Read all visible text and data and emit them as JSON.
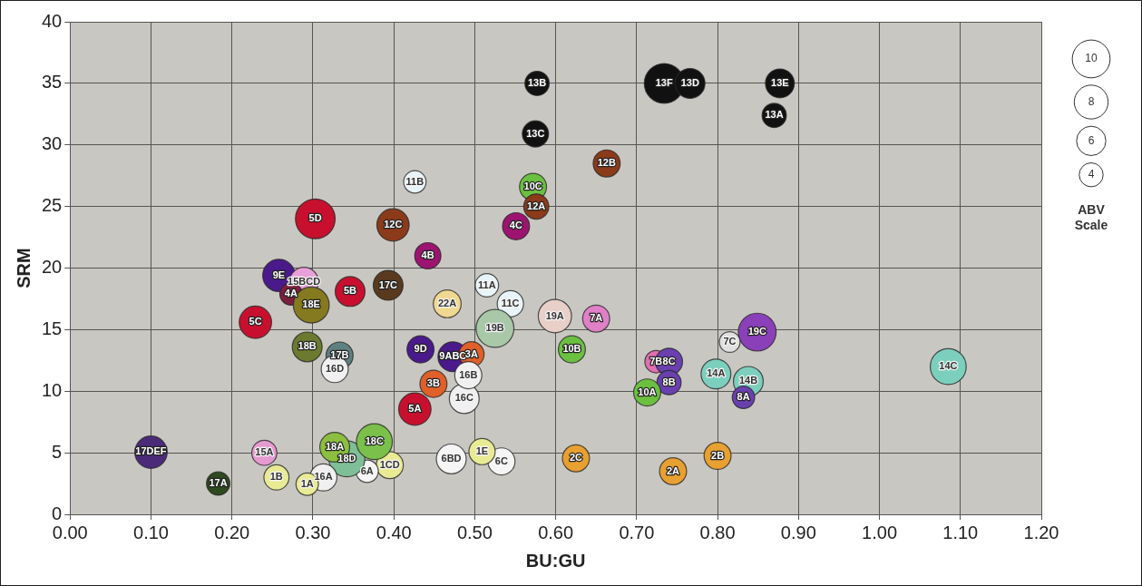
{
  "chart_data": {
    "type": "bubble",
    "xlabel": "BU:GU",
    "ylabel": "SRM",
    "legend_title": "ABV Scale",
    "size_legend": [
      10,
      8,
      6,
      4
    ],
    "xlim": [
      0,
      1.2
    ],
    "ylim": [
      0,
      40
    ],
    "xticks": [
      {
        "value": 0,
        "label": "0.00"
      },
      {
        "value": 0.1,
        "label": "0.10"
      },
      {
        "value": 0.2,
        "label": "0.20"
      },
      {
        "value": 0.3,
        "label": "0.30"
      },
      {
        "value": 0.4,
        "label": "0.40"
      },
      {
        "value": 0.5,
        "label": "0.50"
      },
      {
        "value": 0.6,
        "label": "0.60"
      },
      {
        "value": 0.7,
        "label": "0.70"
      },
      {
        "value": 0.8,
        "label": "0.80"
      },
      {
        "value": 0.9,
        "label": "0.90"
      },
      {
        "value": 1,
        "label": "1.00"
      },
      {
        "value": 1.1,
        "label": "1.10"
      },
      {
        "value": 1.2,
        "label": "1.20"
      }
    ],
    "yticks": [
      0,
      5,
      10,
      15,
      20,
      25,
      30,
      35,
      40
    ],
    "grid": true,
    "x": [
      0.577,
      0.575,
      0.663,
      0.426,
      0.572,
      0.576,
      0.551,
      0.399,
      0.442,
      0.393,
      0.515,
      0.466,
      0.544,
      0.525,
      0.599,
      0.65,
      0.62,
      0.433,
      0.473,
      0.496,
      0.734,
      0.766,
      0.877,
      0.87,
      0.849,
      0.815,
      0.724,
      0.74,
      0.74,
      0.713,
      0.798,
      0.838,
      0.832,
      1.085,
      0.8,
      0.745,
      0.625,
      0.533,
      0.509,
      0.471,
      0.487,
      0.492,
      0.449,
      0.426,
      0.395,
      0.258,
      0.289,
      0.273,
      0.298,
      0.346,
      0.229,
      0.293,
      0.333,
      0.327,
      0.367,
      0.342,
      0.376,
      0.327,
      0.313,
      0.293,
      0.255,
      0.24,
      0.183,
      0.1,
      0.303
    ],
    "values": [
      35,
      30.9,
      28.5,
      27,
      26.6,
      25,
      23.4,
      23.5,
      21,
      18.6,
      18.6,
      17.1,
      17.1,
      15.1,
      16.1,
      15.9,
      13.4,
      13.4,
      12.8,
      13,
      35,
      35,
      35,
      32.4,
      14.8,
      14,
      12.4,
      12.4,
      10.7,
      9.9,
      11.4,
      10.8,
      9.5,
      12,
      4.75,
      3.5,
      4.55,
      4.3,
      5.1,
      4.5,
      9.4,
      11.3,
      10.6,
      8.55,
      4,
      19.4,
      18.9,
      17.9,
      17,
      18.1,
      15.6,
      13.6,
      12.9,
      11.8,
      3.5,
      4.5,
      5.9,
      5.45,
      3,
      2.45,
      3,
      5,
      2.5,
      5.05,
      24
    ],
    "sizes": [
      4.1,
      4.8,
      5.1,
      3.5,
      5.1,
      4.4,
      5.1,
      7.3,
      4.8,
      6.2,
      3.8,
      5.4,
      4.8,
      10,
      7.7,
      5.1,
      5.1,
      5.1,
      6.2,
      4.4,
      11,
      6.2,
      5.8,
      4.1,
      10,
      3,
      3.5,
      5.1,
      4.1,
      5.1,
      6.2,
      6.2,
      3.5,
      9,
      5.1,
      5.1,
      5.1,
      5.1,
      4.8,
      6.2,
      6.2,
      5.1,
      5.1,
      7.3,
      5.1,
      7.3,
      5.8,
      3.5,
      9,
      6.2,
      7.3,
      6.2,
      5.1,
      5.1,
      3.5,
      9,
      9,
      6.2,
      5.1,
      3.5,
      4.4,
      4.4,
      3.8,
      7.3,
      11
    ],
    "colors": [
      "#111111",
      "#111111",
      "#8b3a1a",
      "#e8f4f8",
      "#6cc040",
      "#8b3a1a",
      "#9c1470",
      "#8b3a1a",
      "#9c1470",
      "#5a3a1e",
      "#e8f4f8",
      "#f0d890",
      "#e8f4f8",
      "#a8c8a8",
      "#e8cfc8",
      "#e080c8",
      "#6cc040",
      "#4a1a8c",
      "#4a1a8c",
      "#e0602a",
      "#111111",
      "#111111",
      "#111111",
      "#111111",
      "#8a40b8",
      "#e0e0e0",
      "#e070b0",
      "#6a40b0",
      "#6a40b0",
      "#6cc040",
      "#7ccfbc",
      "#7ccfbc",
      "#6a40b0",
      "#7ccfbc",
      "#e8a030",
      "#e8a030",
      "#e8a030",
      "#f5f5f5",
      "#e9eb94",
      "#f5f5f5",
      "#f0f0f0",
      "#f0f0f0",
      "#e0602a",
      "#c8102e",
      "#e9eb94",
      "#4a1a8c",
      "#e8a0d8",
      "#7a1f3d",
      "#857a1f",
      "#c8102e",
      "#c8102e",
      "#6b7a2e",
      "#5f8080",
      "#f0f0f0",
      "#f5f5f5",
      "#7fbf98",
      "#7ac04a",
      "#8cbf3f",
      "#f0f0f0",
      "#e9eb94",
      "#e9eb94",
      "#e59ad0",
      "#2e4a1e",
      "#4b2a7a",
      "#c8102e"
    ],
    "annotations": [
      {
        "text": "13B",
        "x": 0.577,
        "y": 35
      },
      {
        "text": "13C",
        "x": 0.575,
        "y": 30.9
      },
      {
        "text": "12B",
        "x": 0.663,
        "y": 28.5
      },
      {
        "text": "11B",
        "x": 0.426,
        "y": 27
      },
      {
        "text": "10C",
        "x": 0.572,
        "y": 26.6
      },
      {
        "text": "12A",
        "x": 0.576,
        "y": 25
      },
      {
        "text": "4C",
        "x": 0.551,
        "y": 23.4
      },
      {
        "text": "12C",
        "x": 0.399,
        "y": 23.5
      },
      {
        "text": "4B",
        "x": 0.442,
        "y": 21
      },
      {
        "text": "17C",
        "x": 0.393,
        "y": 18.6
      },
      {
        "text": "11A",
        "x": 0.515,
        "y": 18.6
      },
      {
        "text": "22A",
        "x": 0.466,
        "y": 17.1
      },
      {
        "text": "11C",
        "x": 0.544,
        "y": 17.1
      },
      {
        "text": "19B",
        "x": 0.525,
        "y": 15.1
      },
      {
        "text": "19A",
        "x": 0.599,
        "y": 16.1
      },
      {
        "text": "7A",
        "x": 0.65,
        "y": 15.9
      },
      {
        "text": "10B",
        "x": 0.62,
        "y": 13.4
      },
      {
        "text": "9D",
        "x": 0.433,
        "y": 13.4
      },
      {
        "text": "9ABC",
        "x": 0.473,
        "y": 12.8
      },
      {
        "text": "3A",
        "x": 0.496,
        "y": 13
      },
      {
        "text": "13F",
        "x": 0.734,
        "y": 35
      },
      {
        "text": "13D",
        "x": 0.766,
        "y": 35
      },
      {
        "text": "13E",
        "x": 0.877,
        "y": 35
      },
      {
        "text": "13A",
        "x": 0.87,
        "y": 32.4
      },
      {
        "text": "19C",
        "x": 0.849,
        "y": 14.8
      },
      {
        "text": "7C",
        "x": 0.815,
        "y": 14
      },
      {
        "text": "7B",
        "x": 0.724,
        "y": 12.4
      },
      {
        "text": "8C",
        "x": 0.74,
        "y": 12.4
      },
      {
        "text": "8B",
        "x": 0.74,
        "y": 10.7
      },
      {
        "text": "10A",
        "x": 0.713,
        "y": 9.9
      },
      {
        "text": "14A",
        "x": 0.798,
        "y": 11.4
      },
      {
        "text": "14B",
        "x": 0.838,
        "y": 10.8
      },
      {
        "text": "8A",
        "x": 0.832,
        "y": 9.5
      },
      {
        "text": "14C",
        "x": 1.085,
        "y": 12
      },
      {
        "text": "2B",
        "x": 0.8,
        "y": 4.75
      },
      {
        "text": "2A",
        "x": 0.745,
        "y": 3.5
      },
      {
        "text": "2C",
        "x": 0.625,
        "y": 4.55
      },
      {
        "text": "6C",
        "x": 0.533,
        "y": 4.3
      },
      {
        "text": "1E",
        "x": 0.509,
        "y": 5.1
      },
      {
        "text": "6BD",
        "x": 0.471,
        "y": 4.5
      },
      {
        "text": "16C",
        "x": 0.487,
        "y": 9.4
      },
      {
        "text": "16B",
        "x": 0.492,
        "y": 11.3
      },
      {
        "text": "3B",
        "x": 0.449,
        "y": 10.6
      },
      {
        "text": "5A",
        "x": 0.426,
        "y": 8.55
      },
      {
        "text": "1CD",
        "x": 0.395,
        "y": 4
      },
      {
        "text": "9E",
        "x": 0.258,
        "y": 19.4
      },
      {
        "text": "15BCD",
        "x": 0.289,
        "y": 18.9
      },
      {
        "text": "4A",
        "x": 0.273,
        "y": 17.9
      },
      {
        "text": "18E",
        "x": 0.298,
        "y": 17
      },
      {
        "text": "5B",
        "x": 0.346,
        "y": 18.1
      },
      {
        "text": "5C",
        "x": 0.229,
        "y": 15.6
      },
      {
        "text": "18B",
        "x": 0.293,
        "y": 13.6
      },
      {
        "text": "17B",
        "x": 0.333,
        "y": 12.9
      },
      {
        "text": "16D",
        "x": 0.327,
        "y": 11.8
      },
      {
        "text": "6A",
        "x": 0.367,
        "y": 3.5
      },
      {
        "text": "18D",
        "x": 0.342,
        "y": 4.5
      },
      {
        "text": "18C",
        "x": 0.376,
        "y": 5.9
      },
      {
        "text": "18A",
        "x": 0.327,
        "y": 5.45
      },
      {
        "text": "16A",
        "x": 0.313,
        "y": 3
      },
      {
        "text": "1A",
        "x": 0.293,
        "y": 2.45
      },
      {
        "text": "1B",
        "x": 0.255,
        "y": 3
      },
      {
        "text": "15A",
        "x": 0.24,
        "y": 5
      },
      {
        "text": "17A",
        "x": 0.183,
        "y": 2.5
      },
      {
        "text": "17DEF",
        "x": 0.1,
        "y": 5.05
      },
      {
        "text": "5D",
        "x": 0.303,
        "y": 24
      }
    ]
  }
}
